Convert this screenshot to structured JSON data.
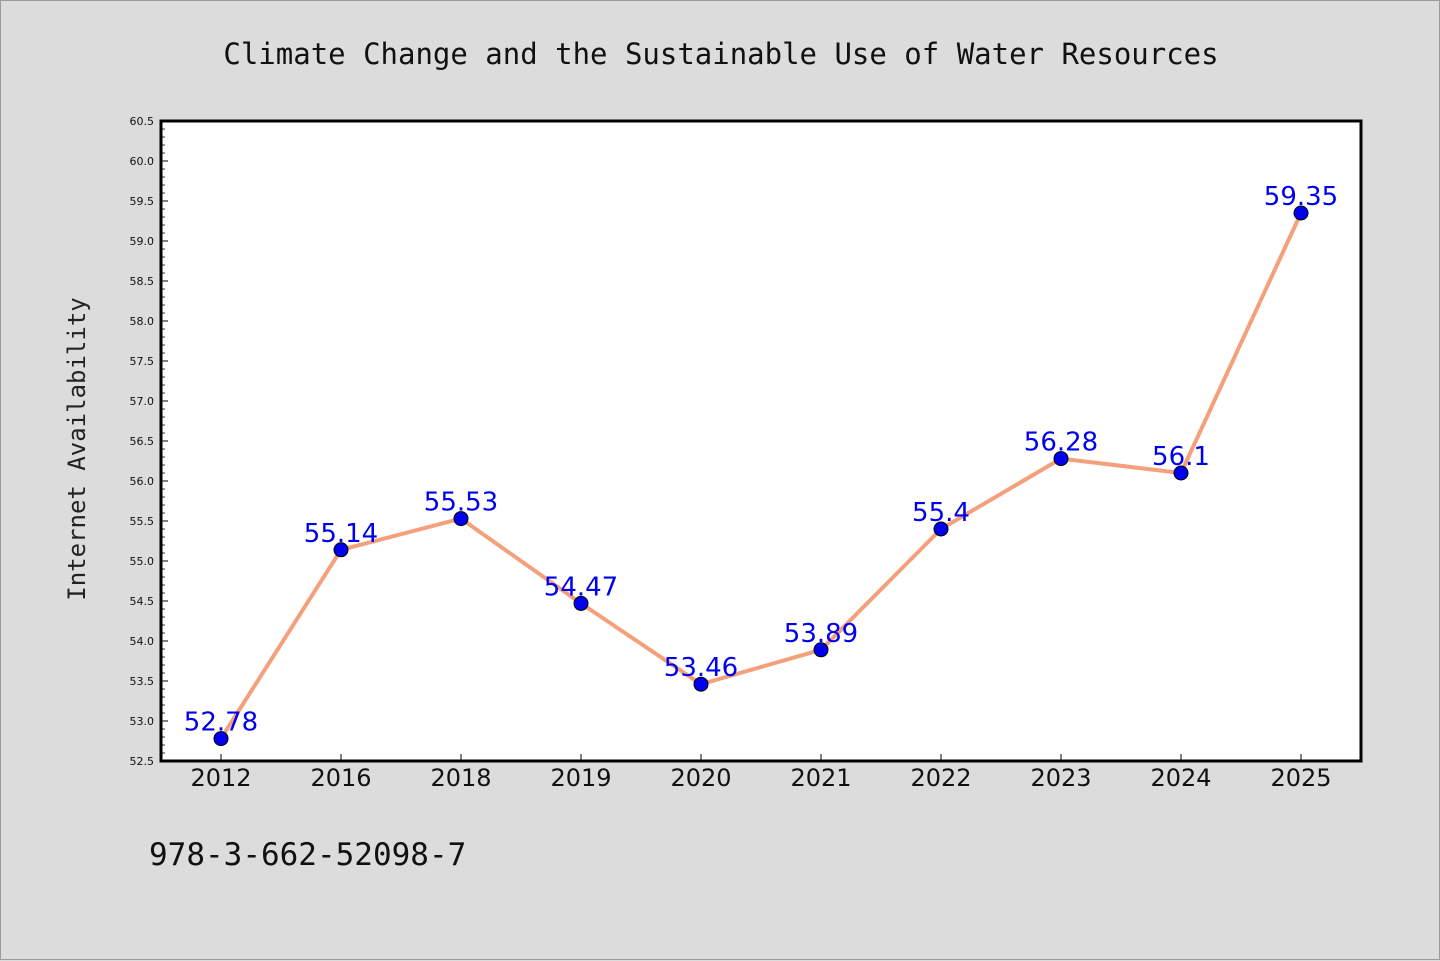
{
  "chart_data": {
    "type": "line",
    "title": "Climate Change and the Sustainable Use of Water Resources",
    "xlabel": "",
    "ylabel": "Internet Availability",
    "categories": [
      "2012",
      "2016",
      "2018",
      "2019",
      "2020",
      "2021",
      "2022",
      "2023",
      "2024",
      "2025"
    ],
    "series": [
      {
        "values": [
          52.78,
          55.14,
          55.53,
          54.47,
          53.46,
          53.89,
          55.4,
          56.28,
          56.1,
          59.35
        ],
        "labels": [
          "52.78",
          "55.14",
          "55.53",
          "54.47",
          "53.46",
          "53.89",
          "55.4",
          "56.28",
          "56.1",
          "59.35"
        ],
        "line_color": "#f4a07c",
        "marker_color": "#0000ee",
        "label_color": "#0000ee"
      }
    ],
    "ylim": [
      52.5,
      60.5
    ],
    "yticks": [
      "52.5",
      "53.0",
      "53.5",
      "54.0",
      "54.5",
      "55.0",
      "55.5",
      "56.0",
      "56.5",
      "57.0",
      "57.5",
      "58.0",
      "58.5",
      "59.0",
      "59.5",
      "60.0",
      "60.5"
    ],
    "grid": false,
    "legend": "none"
  },
  "footer": {
    "isbn": "978-3-662-52098-7"
  }
}
